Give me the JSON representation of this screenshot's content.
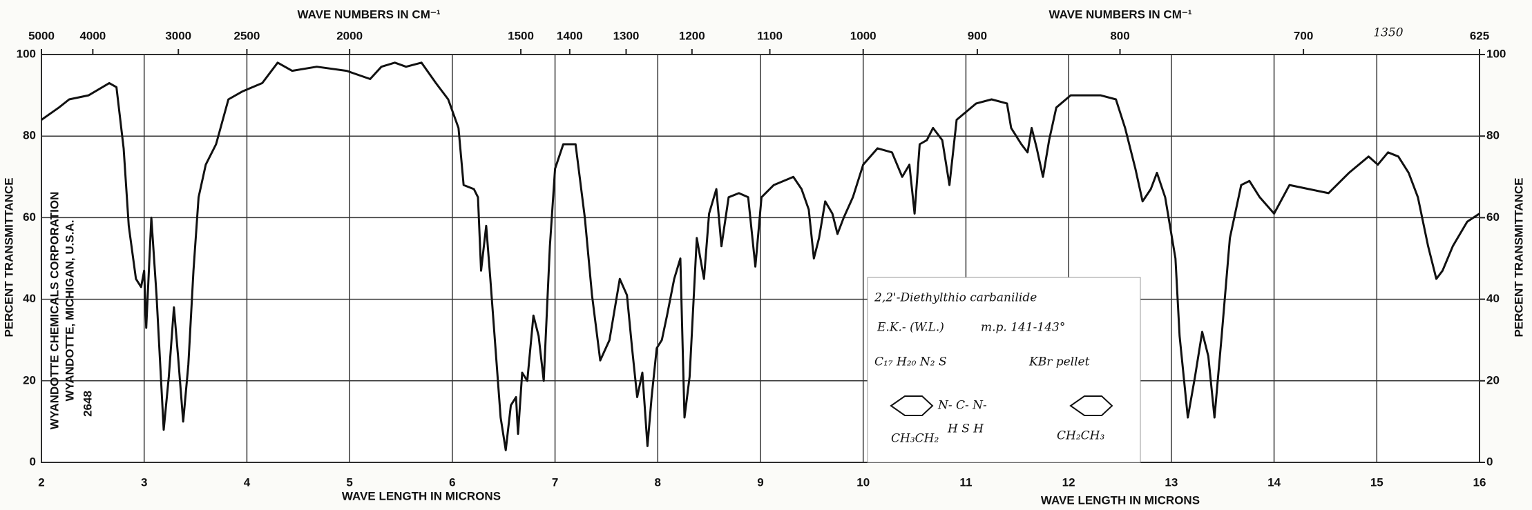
{
  "chart_data": {
    "type": "line",
    "title": "1350",
    "xlabel": "WAVE LENGTH IN MICRONS",
    "xlabel2": "WAVE LENGTH IN MICRONS",
    "x2label": "WAVE NUMBERS IN CM⁻¹",
    "x2label2": "WAVE NUMBERS IN CM⁻¹",
    "ylabel": "PERCENT TRANSMITTANCE",
    "y2label": "PERCENT TRANSMITTANCE",
    "xlim": [
      2,
      16
    ],
    "xticks": [
      2,
      3,
      4,
      5,
      6,
      7,
      8,
      9,
      10,
      11,
      12,
      13,
      14,
      15,
      16
    ],
    "x2ticks": [
      {
        "value": 2.0,
        "label": "5000"
      },
      {
        "value": 2.5,
        "label": "4000"
      },
      {
        "value": 3.333,
        "label": "3000"
      },
      {
        "value": 4.0,
        "label": "2500"
      },
      {
        "value": 5.0,
        "label": "2000"
      },
      {
        "value": 6.667,
        "label": "1500"
      },
      {
        "value": 7.143,
        "label": "1400"
      },
      {
        "value": 7.692,
        "label": "1300"
      },
      {
        "value": 8.333,
        "label": "1200"
      },
      {
        "value": 9.091,
        "label": "1100"
      },
      {
        "value": 10.0,
        "label": "1000"
      },
      {
        "value": 11.111,
        "label": "900"
      },
      {
        "value": 12.5,
        "label": "800"
      },
      {
        "value": 14.286,
        "label": "700"
      },
      {
        "value": 16.0,
        "label": "625"
      }
    ],
    "ylim": [
      0,
      100
    ],
    "yticks": [
      0,
      20,
      40,
      60,
      80,
      100
    ],
    "y2lim": [
      0,
      100
    ],
    "y2ticks": [
      0,
      20,
      40,
      60,
      80,
      100
    ],
    "grid": true,
    "series": [
      {
        "name": "2,2'-Diethylthio carbanilide",
        "color": "#111111",
        "x": [
          2.0,
          2.17,
          2.27,
          2.46,
          2.66,
          2.73,
          2.8,
          2.85,
          2.92,
          2.97,
          3.0,
          3.02,
          3.07,
          3.12,
          3.19,
          3.24,
          3.29,
          3.33,
          3.38,
          3.43,
          3.48,
          3.53,
          3.6,
          3.7,
          3.82,
          3.96,
          4.15,
          4.3,
          4.44,
          4.68,
          4.97,
          5.2,
          5.31,
          5.44,
          5.55,
          5.7,
          5.84,
          5.96,
          6.06,
          6.11,
          6.21,
          6.25,
          6.28,
          6.33,
          6.37,
          6.47,
          6.52,
          6.57,
          6.62,
          6.64,
          6.68,
          6.73,
          6.79,
          6.84,
          6.89,
          6.95,
          7.0,
          7.08,
          7.2,
          7.29,
          7.36,
          7.44,
          7.53,
          7.63,
          7.7,
          7.75,
          7.8,
          7.85,
          7.9,
          7.94,
          7.99,
          8.04,
          8.09,
          8.16,
          8.22,
          8.26,
          8.31,
          8.38,
          8.45,
          8.5,
          8.57,
          8.62,
          8.69,
          8.79,
          8.88,
          8.95,
          9.01,
          9.13,
          9.32,
          9.4,
          9.47,
          9.52,
          9.57,
          9.63,
          9.7,
          9.75,
          9.81,
          9.9,
          10.0,
          10.14,
          10.28,
          10.38,
          10.45,
          10.5,
          10.55,
          10.62,
          10.68,
          10.77,
          10.84,
          10.91,
          11.1,
          11.25,
          11.4,
          11.44,
          11.54,
          11.6,
          11.64,
          11.69,
          11.75,
          11.81,
          11.88,
          12.02,
          12.31,
          12.46,
          12.55,
          12.65,
          12.72,
          12.8,
          12.86,
          12.94,
          13.04,
          13.08,
          13.16,
          13.23,
          13.3,
          13.36,
          13.42,
          13.49,
          13.57,
          13.68,
          13.76,
          13.86,
          14.0,
          14.15,
          14.34,
          14.53,
          14.73,
          14.92,
          15.01,
          15.11,
          15.21,
          15.31,
          15.4,
          15.5,
          15.58,
          15.64,
          15.74,
          15.88,
          16.0
        ],
        "values": [
          84,
          87,
          89,
          90,
          93,
          92,
          77,
          58,
          45,
          43,
          47,
          33,
          60,
          41,
          8,
          21,
          38,
          26,
          10,
          24,
          47,
          65,
          73,
          78,
          89,
          91,
          93,
          98,
          96,
          97,
          96,
          94,
          97,
          98,
          97,
          98,
          93,
          89,
          82,
          68,
          67,
          65,
          47,
          58,
          45,
          11,
          3,
          14,
          16,
          7,
          22,
          20,
          36,
          31,
          20,
          53,
          72,
          78,
          78,
          60,
          41,
          25,
          30,
          45,
          41,
          28,
          16,
          22,
          4,
          16,
          28,
          30,
          36,
          45,
          50,
          11,
          21,
          55,
          45,
          61,
          67,
          53,
          65,
          66,
          65,
          48,
          65,
          68,
          70,
          67,
          62,
          50,
          55,
          64,
          61,
          56,
          60,
          65,
          73,
          77,
          76,
          70,
          73,
          61,
          78,
          79,
          82,
          79,
          68,
          84,
          88,
          89,
          88,
          82,
          78,
          76,
          82,
          77,
          70,
          79,
          87,
          90,
          90,
          89,
          82,
          72,
          64,
          67,
          71,
          65,
          50,
          31,
          11,
          21,
          32,
          26,
          11,
          31,
          55,
          68,
          69,
          65,
          61,
          68,
          67,
          66,
          71,
          75,
          73,
          76,
          75,
          71,
          65,
          53,
          45,
          47,
          53,
          59,
          61
        ]
      }
    ]
  },
  "stamp": {
    "company": "WYANDOTTE CHEMICALS CORPORATION",
    "place": "WYANDOTTE, MICHIGAN, U.S.A.",
    "number": "2648"
  },
  "inset": {
    "name": "2,2'-Diethylthio carbanilide",
    "source": "E.K.- (W.L.)",
    "mp": "m.p. 141-143°",
    "formula": "C₁₇ H₂₀ N₂ S",
    "method": "KBr pellet",
    "structure": {
      "chain": "N- C- N-",
      "below": "H  S  H",
      "left": "CH₃CH₂",
      "right": "CH₂CH₃"
    }
  }
}
